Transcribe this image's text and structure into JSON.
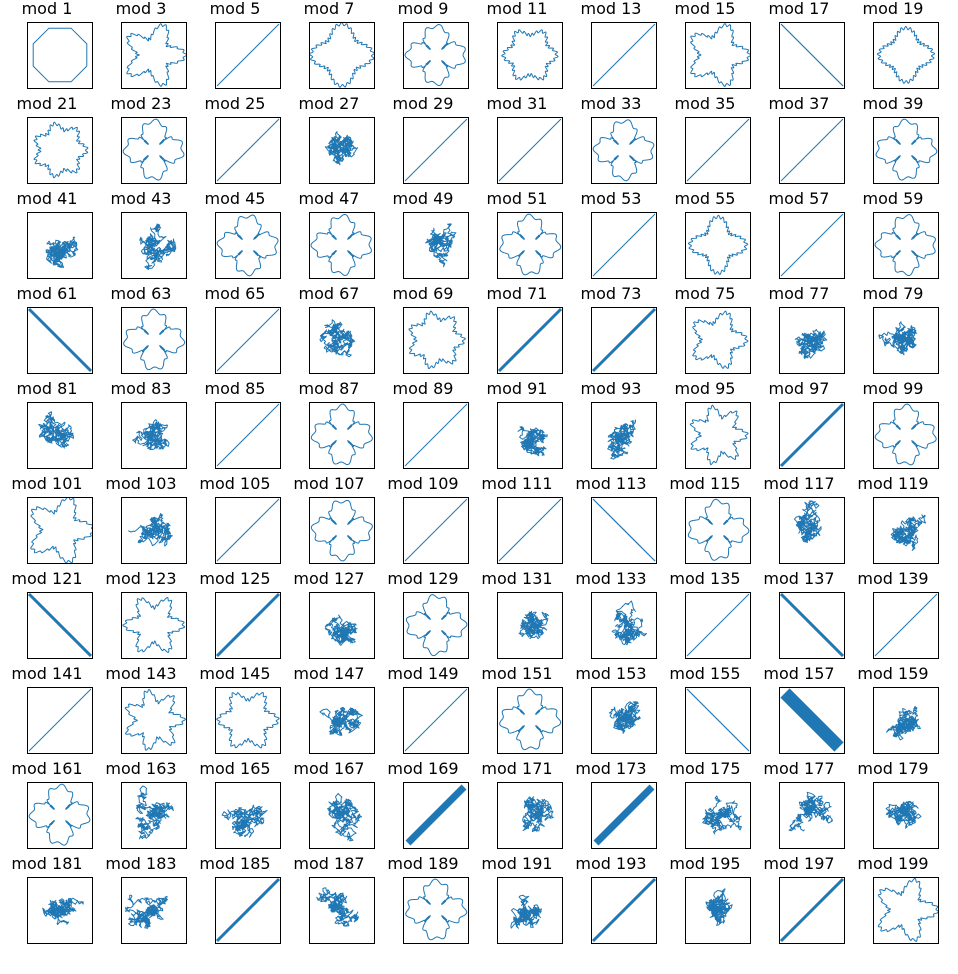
{
  "chart_data": {
    "type": "line",
    "series_color": "#1f77b4",
    "grid": false,
    "axes_ticks": false,
    "panels": [
      {
        "title": "mod 1",
        "shape": "octagon"
      },
      {
        "title": "mod 3",
        "shape": "wavy"
      },
      {
        "title": "mod 5",
        "shape": "diag"
      },
      {
        "title": "mod 7",
        "shape": "wavy"
      },
      {
        "title": "mod 9",
        "shape": "pinwheel"
      },
      {
        "title": "mod 11",
        "shape": "wavy"
      },
      {
        "title": "mod 13",
        "shape": "diag"
      },
      {
        "title": "mod 15",
        "shape": "wavy"
      },
      {
        "title": "mod 17",
        "shape": "antidiag"
      },
      {
        "title": "mod 19",
        "shape": "wavy"
      },
      {
        "title": "mod 21",
        "shape": "wavy"
      },
      {
        "title": "mod 23",
        "shape": "pinwheel"
      },
      {
        "title": "mod 25",
        "shape": "diag"
      },
      {
        "title": "mod 27",
        "shape": "tangle"
      },
      {
        "title": "mod 29",
        "shape": "diag"
      },
      {
        "title": "mod 31",
        "shape": "diag"
      },
      {
        "title": "mod 33",
        "shape": "pinwheel"
      },
      {
        "title": "mod 35",
        "shape": "diag"
      },
      {
        "title": "mod 37",
        "shape": "diag"
      },
      {
        "title": "mod 39",
        "shape": "pinwheel"
      },
      {
        "title": "mod 41",
        "shape": "tangle"
      },
      {
        "title": "mod 43",
        "shape": "tangle"
      },
      {
        "title": "mod 45",
        "shape": "pinwheel"
      },
      {
        "title": "mod 47",
        "shape": "pinwheel"
      },
      {
        "title": "mod 49",
        "shape": "tangle"
      },
      {
        "title": "mod 51",
        "shape": "pinwheel"
      },
      {
        "title": "mod 53",
        "shape": "diag"
      },
      {
        "title": "mod 55",
        "shape": "wavy"
      },
      {
        "title": "mod 57",
        "shape": "diag"
      },
      {
        "title": "mod 59",
        "shape": "pinwheel"
      },
      {
        "title": "mod 61",
        "shape": "antidiag-band"
      },
      {
        "title": "mod 63",
        "shape": "pinwheel"
      },
      {
        "title": "mod 65",
        "shape": "diag"
      },
      {
        "title": "mod 67",
        "shape": "tangle"
      },
      {
        "title": "mod 69",
        "shape": "wavy"
      },
      {
        "title": "mod 71",
        "shape": "diag-band"
      },
      {
        "title": "mod 73",
        "shape": "diag-band"
      },
      {
        "title": "mod 75",
        "shape": "wavy"
      },
      {
        "title": "mod 77",
        "shape": "tangle"
      },
      {
        "title": "mod 79",
        "shape": "tangle"
      },
      {
        "title": "mod 81",
        "shape": "tangle"
      },
      {
        "title": "mod 83",
        "shape": "tangle"
      },
      {
        "title": "mod 85",
        "shape": "diag"
      },
      {
        "title": "mod 87",
        "shape": "pinwheel"
      },
      {
        "title": "mod 89",
        "shape": "diag"
      },
      {
        "title": "mod 91",
        "shape": "tangle"
      },
      {
        "title": "mod 93",
        "shape": "tangle"
      },
      {
        "title": "mod 95",
        "shape": "wavy"
      },
      {
        "title": "mod 97",
        "shape": "diag-band"
      },
      {
        "title": "mod 99",
        "shape": "pinwheel"
      },
      {
        "title": "mod 101",
        "shape": "wavy"
      },
      {
        "title": "mod 103",
        "shape": "tangle"
      },
      {
        "title": "mod 105",
        "shape": "diag"
      },
      {
        "title": "mod 107",
        "shape": "pinwheel"
      },
      {
        "title": "mod 109",
        "shape": "diag"
      },
      {
        "title": "mod 111",
        "shape": "diag"
      },
      {
        "title": "mod 113",
        "shape": "antidiag"
      },
      {
        "title": "mod 115",
        "shape": "pinwheel"
      },
      {
        "title": "mod 117",
        "shape": "tangle"
      },
      {
        "title": "mod 119",
        "shape": "tangle"
      },
      {
        "title": "mod 121",
        "shape": "antidiag-band"
      },
      {
        "title": "mod 123",
        "shape": "wavy"
      },
      {
        "title": "mod 125",
        "shape": "diag-band"
      },
      {
        "title": "mod 127",
        "shape": "tangle"
      },
      {
        "title": "mod 129",
        "shape": "pinwheel"
      },
      {
        "title": "mod 131",
        "shape": "tangle"
      },
      {
        "title": "mod 133",
        "shape": "tangle"
      },
      {
        "title": "mod 135",
        "shape": "diag"
      },
      {
        "title": "mod 137",
        "shape": "antidiag-band"
      },
      {
        "title": "mod 139",
        "shape": "diag"
      },
      {
        "title": "mod 141",
        "shape": "diag"
      },
      {
        "title": "mod 143",
        "shape": "wavy"
      },
      {
        "title": "mod 145",
        "shape": "wavy"
      },
      {
        "title": "mod 147",
        "shape": "tangle"
      },
      {
        "title": "mod 149",
        "shape": "diag"
      },
      {
        "title": "mod 151",
        "shape": "pinwheel"
      },
      {
        "title": "mod 153",
        "shape": "tangle"
      },
      {
        "title": "mod 155",
        "shape": "antidiag"
      },
      {
        "title": "mod 157",
        "shape": "antidiag-thick"
      },
      {
        "title": "mod 159",
        "shape": "tangle"
      },
      {
        "title": "mod 161",
        "shape": "pinwheel"
      },
      {
        "title": "mod 163",
        "shape": "tangle"
      },
      {
        "title": "mod 165",
        "shape": "tangle"
      },
      {
        "title": "mod 167",
        "shape": "tangle"
      },
      {
        "title": "mod 169",
        "shape": "diag-thick"
      },
      {
        "title": "mod 171",
        "shape": "tangle"
      },
      {
        "title": "mod 173",
        "shape": "diag-thick"
      },
      {
        "title": "mod 175",
        "shape": "tangle"
      },
      {
        "title": "mod 177",
        "shape": "tangle"
      },
      {
        "title": "mod 179",
        "shape": "tangle"
      },
      {
        "title": "mod 181",
        "shape": "tangle"
      },
      {
        "title": "mod 183",
        "shape": "tangle"
      },
      {
        "title": "mod 185",
        "shape": "diag-band"
      },
      {
        "title": "mod 187",
        "shape": "tangle"
      },
      {
        "title": "mod 189",
        "shape": "pinwheel"
      },
      {
        "title": "mod 191",
        "shape": "tangle"
      },
      {
        "title": "mod 193",
        "shape": "diag-band"
      },
      {
        "title": "mod 195",
        "shape": "tangle"
      },
      {
        "title": "mod 197",
        "shape": "diag-band"
      },
      {
        "title": "mod 199",
        "shape": "wavy"
      }
    ]
  }
}
